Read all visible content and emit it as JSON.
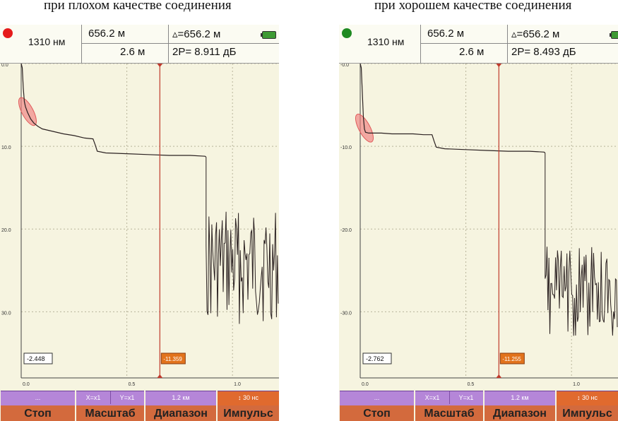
{
  "captions": {
    "left": "при плохом качестве соединения",
    "right": "при хорошем качестве соединения"
  },
  "colors": {
    "led_bad": "#e51b1b",
    "led_good": "#1f8a22",
    "cursor": "#c0392b",
    "cursor_label": "#e2731c",
    "highlight": "#f08080",
    "trace": "#2b2121",
    "plot_bg": "#f6f4e0",
    "button": "#b586d8",
    "button_main": "#d36a3d"
  },
  "panels": [
    {
      "status": "bad",
      "wavelength": "1310 нм",
      "distance": "656.2 м",
      "resolution": "2.6 м",
      "delta": "▵=656.2 м",
      "loss": "2P=  8.911 дБ",
      "left_marker_value": "-2.448",
      "cursor_value": "-11.359",
      "buttons": {
        "b1_sub": "...",
        "b1_main": "Стоп",
        "b2_sub_x": "X=x1",
        "b2_sub_y": "Y=x1",
        "b2_main": "Масштаб",
        "b3_sub": "1.2 км",
        "b3_main": "Диапазон",
        "b4_sub": "↕ 30 нс",
        "b4_main": "Импульс"
      }
    },
    {
      "status": "good",
      "wavelength": "1310 нм",
      "distance": "656.2 м",
      "resolution": "2.6 м",
      "delta": "▵=656.2 м",
      "loss": "2P=  8.493 дБ",
      "left_marker_value": "-2.762",
      "cursor_value": "-11.255",
      "buttons": {
        "b1_sub": "...",
        "b1_main": "Стоп",
        "b2_sub_x": "X=x1",
        "b2_sub_y": "Y=x1",
        "b2_main": "Масштаб",
        "b3_sub": "1.2 км",
        "b3_main": "Диапазон",
        "b4_sub": "↕ 30 нс",
        "b4_main": "Импульс"
      }
    }
  ],
  "chart_data": [
    {
      "type": "line",
      "title": "",
      "xlabel": "",
      "ylabel": "",
      "x_ticks": [
        "0.0",
        "0.5",
        "1.0"
      ],
      "y_ticks": [
        "0.0",
        "10.0",
        "20.0",
        "30.0"
      ],
      "xlim": [
        0.0,
        1.22
      ],
      "ylim": [
        0.0,
        38.0
      ],
      "y_inverted": true,
      "grid": true,
      "cursor_x": 0.6562,
      "highlight": {
        "x": 0.03,
        "y": 5.8
      },
      "series": [
        {
          "x": [
            0.0,
            0.005,
            0.01,
            0.015,
            0.02,
            0.03,
            0.045,
            0.06,
            0.08,
            0.1,
            0.15,
            0.2,
            0.25,
            0.3,
            0.34,
            0.35,
            0.36,
            0.4,
            0.5,
            0.6,
            0.7,
            0.8,
            0.87,
            0.875
          ],
          "y": [
            0.0,
            0.5,
            3.0,
            4.6,
            5.2,
            5.9,
            6.7,
            7.2,
            7.6,
            7.9,
            8.2,
            8.5,
            8.7,
            9.0,
            9.1,
            9.8,
            10.6,
            10.8,
            10.9,
            11.0,
            11.1,
            11.1,
            11.2,
            11.3
          ]
        }
      ]
    },
    {
      "type": "line",
      "title": "",
      "xlabel": "",
      "ylabel": "",
      "x_ticks": [
        "0.0",
        "0.5",
        "1.0"
      ],
      "y_ticks": [
        "-0.0",
        "-10.0",
        "-20.0",
        "-30.0"
      ],
      "xlim": [
        0.0,
        1.22
      ],
      "ylim": [
        0.0,
        38.0
      ],
      "y_inverted": true,
      "grid": true,
      "cursor_x": 0.6562,
      "highlight": {
        "x": 0.02,
        "y": 7.8
      },
      "series": [
        {
          "x": [
            0.0,
            0.005,
            0.01,
            0.015,
            0.02,
            0.025,
            0.04,
            0.06,
            0.1,
            0.15,
            0.2,
            0.25,
            0.3,
            0.34,
            0.35,
            0.36,
            0.4,
            0.5,
            0.6,
            0.7,
            0.8,
            0.87,
            0.875
          ],
          "y": [
            0.0,
            0.5,
            3.5,
            6.5,
            7.9,
            8.3,
            8.4,
            8.4,
            8.4,
            8.5,
            8.5,
            8.5,
            8.6,
            8.6,
            9.4,
            10.1,
            10.3,
            10.4,
            10.5,
            10.6,
            10.6,
            10.7,
            10.8
          ]
        }
      ]
    }
  ]
}
